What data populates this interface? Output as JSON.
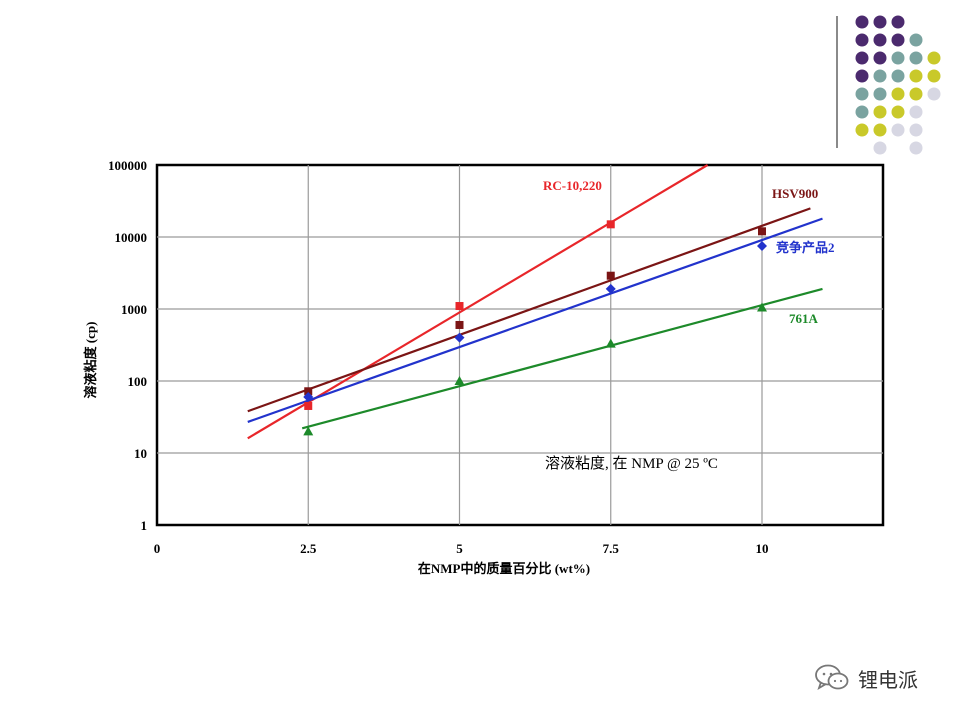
{
  "colors": {
    "dot_purple": "#4b2a6e",
    "dot_teal": "#7aa3a0",
    "dot_yellow": "#c9c92a",
    "dot_gray": "#d7d7e3",
    "deco_line": "#8a8a8a"
  },
  "decoration": {
    "dot_rows": [
      [
        "purple",
        "purple",
        "purple",
        "none",
        "none"
      ],
      [
        "purple",
        "purple",
        "purple",
        "teal",
        "none"
      ],
      [
        "purple",
        "purple",
        "teal",
        "teal",
        "yellow"
      ],
      [
        "purple",
        "teal",
        "teal",
        "yellow",
        "yellow"
      ],
      [
        "teal",
        "teal",
        "yellow",
        "yellow",
        "gray"
      ],
      [
        "teal",
        "yellow",
        "yellow",
        "gray",
        "none"
      ],
      [
        "yellow",
        "yellow",
        "gray",
        "gray",
        "none"
      ],
      [
        "none",
        "gray",
        "none",
        "gray",
        "none"
      ]
    ]
  },
  "chart_data": {
    "type": "scatter",
    "title": "溶液粘度, 在 NMP @ 25 ºC",
    "xlabel": "在NMP中的质量百分比 (wt%)",
    "ylabel": "溶液粘度 (cp)",
    "xlim": [
      0,
      12
    ],
    "ylim": [
      1,
      100000
    ],
    "y_scale": "log",
    "x_ticks": [
      0,
      2.5,
      5,
      7.5,
      10
    ],
    "x_tick_labels": [
      "0",
      "2.5",
      "5",
      "7.5",
      "10"
    ],
    "y_ticks": [
      1,
      10,
      100,
      1000,
      10000,
      100000
    ],
    "y_tick_labels": [
      "1",
      "10",
      "100",
      "1000",
      "10000",
      "100000"
    ],
    "grid": true,
    "series": [
      {
        "name": "RC-10,220",
        "color": "#e8262a",
        "marker": "square",
        "x": [
          2.5,
          5,
          7.5
        ],
        "y": [
          45,
          1100,
          15000
        ],
        "trend": {
          "x": [
            1.5,
            9.1
          ],
          "y": [
            16,
            100000
          ]
        }
      },
      {
        "name": "HSV900",
        "color": "#7b1515",
        "marker": "square",
        "x": [
          2.5,
          5,
          7.5,
          10
        ],
        "y": [
          72,
          600,
          2900,
          12000
        ],
        "trend": {
          "x": [
            1.5,
            10.8
          ],
          "y": [
            38,
            25000
          ]
        }
      },
      {
        "name": "竞争产品2",
        "color": "#2233cc",
        "marker": "diamond",
        "x": [
          2.5,
          5,
          7.5,
          10
        ],
        "y": [
          60,
          400,
          1900,
          7500
        ],
        "trend": {
          "x": [
            1.5,
            11
          ],
          "y": [
            27,
            18000
          ]
        }
      },
      {
        "name": "761A",
        "color": "#1d8a2a",
        "marker": "triangle",
        "x": [
          2.5,
          5,
          7.5,
          10
        ],
        "y": [
          20,
          100,
          330,
          1050
        ],
        "trend": {
          "x": [
            2.4,
            11
          ],
          "y": [
            22,
            1900
          ]
        }
      }
    ]
  },
  "watermark": {
    "text": "锂电派",
    "icon": "chat-bubbles-icon"
  }
}
